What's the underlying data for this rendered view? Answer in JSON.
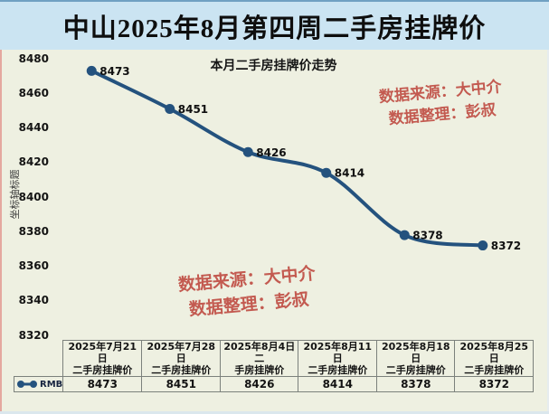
{
  "page": {
    "title": "中山2025年8月第四周二手房挂牌价"
  },
  "watermark": {
    "line1": "数据来源：大中介",
    "line2": "数据整理：彭叔"
  },
  "colors": {
    "line": "#24527e",
    "marker": "#24527e",
    "label_text": "#101010",
    "watermark": "#c35a50",
    "title_band": "#cbe4f2",
    "chart_bg": "#eef0e1",
    "table_border": "#7c817c"
  },
  "chart_data": {
    "type": "line",
    "title": "本月二手房挂牌价走势",
    "ylabel": "坐标轴标题",
    "legend": [
      "RMB"
    ],
    "legend_position": "data-table-left",
    "categories": [
      "2025年7月21日二手房挂牌价",
      "2025年7月28日二手房挂牌价",
      "2025年8月4日二手房挂牌价",
      "2025年8月11日二手房挂牌价",
      "2025年8月18日二手房挂牌价",
      "2025年8月25日二手房挂牌价"
    ],
    "category_lines": [
      [
        "2025年7月21日",
        "二手房挂牌价"
      ],
      [
        "2025年7月28日",
        "二手房挂牌价"
      ],
      [
        "2025年8月4日二",
        "手房挂牌价"
      ],
      [
        "2025年8月11日",
        "二手房挂牌价"
      ],
      [
        "2025年8月18日",
        "二手房挂牌价"
      ],
      [
        "2025年8月25日",
        "二手房挂牌价"
      ]
    ],
    "series": [
      {
        "name": "RMB",
        "values": [
          8473,
          8451,
          8426,
          8414,
          8378,
          8372
        ]
      }
    ],
    "data_labels": true,
    "ylim": [
      8320,
      8480
    ],
    "yticks": [
      8320,
      8340,
      8360,
      8380,
      8400,
      8420,
      8440,
      8460,
      8480
    ],
    "grid": false,
    "smooth": true,
    "data_table_shown": true
  }
}
